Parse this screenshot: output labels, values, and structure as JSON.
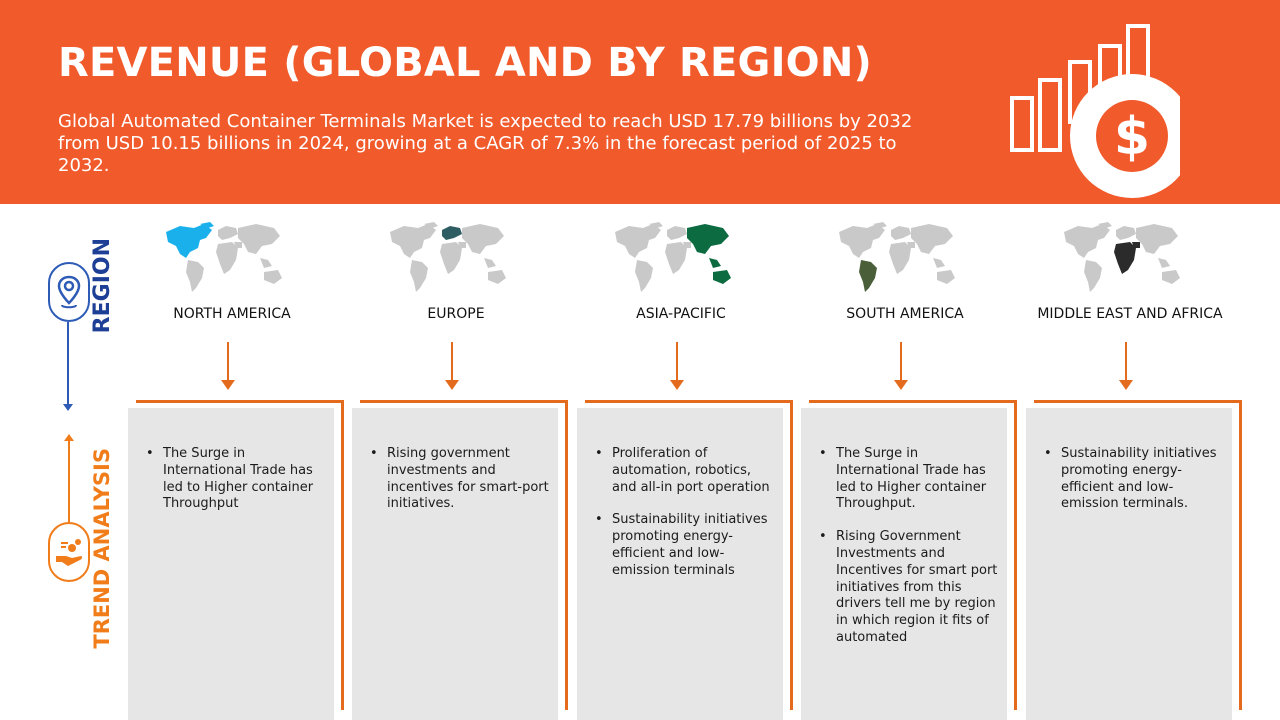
{
  "header": {
    "title": "REVENUE (GLOBAL AND BY REGION)",
    "description": "Global Automated Container Terminals Market is expected to reach USD 17.79 billions by 2032 from USD 10.15 billions in 2024, growing at a CAGR of 7.3% in the forecast period of 2025 to 2032.",
    "icon": "revenue-growth-dollar-icon"
  },
  "sidebar": {
    "region_label": "REGION",
    "trend_label": "TREND ANALYSIS",
    "region_icon": "location-pin-icon",
    "trend_icon": "hand-coins-icon"
  },
  "colors": {
    "banner": "#f15a2b",
    "region_blue": "#1d3f95",
    "trend_orange": "#f07c1a",
    "card_bg": "#e6e6e6"
  },
  "regions": [
    {
      "name": "NORTH AMERICA",
      "highlight_color": "#1ab0ec",
      "trends": [
        "The Surge in International Trade has led to Higher container Throughput"
      ]
    },
    {
      "name": "EUROPE",
      "highlight_color": "#2e5e63",
      "trends": [
        "Rising government investments and incentives for smart-port initiatives."
      ]
    },
    {
      "name": "ASIA-PACIFIC",
      "highlight_color": "#0d6b42",
      "trends": [
        "Proliferation of automation, robotics, and all-in port operation",
        "Sustainability initiatives promoting energy-efficient and low-emission terminals"
      ]
    },
    {
      "name": "SOUTH AMERICA",
      "highlight_color": "#4a5e3a",
      "trends": [
        "The Surge in International Trade has led to Higher container Throughput.",
        "Rising Government Investments and Incentives for smart port initiatives from this drivers tell me by region in which region it fits of automated"
      ]
    },
    {
      "name": "MIDDLE EAST AND AFRICA",
      "highlight_color": "#2b2b2b",
      "trends": [
        "Sustainability initiatives promoting energy-efficient and low-emission terminals."
      ]
    }
  ]
}
